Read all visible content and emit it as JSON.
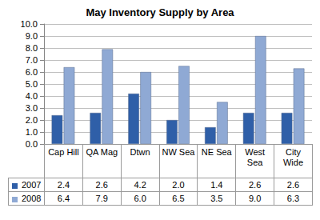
{
  "chart_data": {
    "type": "bar",
    "title": "May Inventory Supply by Area",
    "categories": [
      "Cap Hill",
      "QA Mag",
      "Dtwn",
      "NW Sea",
      "NE Sea",
      "West Sea",
      "City Wide"
    ],
    "series": [
      {
        "name": "2007",
        "color": "#2f5fa8",
        "values": [
          2.4,
          2.6,
          4.2,
          2.0,
          1.4,
          2.6,
          2.6
        ],
        "value_labels": [
          "2.4",
          "2.6",
          "4.2",
          "2.0",
          "1.4",
          "2.6",
          "2.6"
        ]
      },
      {
        "name": "2008",
        "color": "#8fa9d4",
        "values": [
          6.4,
          7.9,
          6.0,
          6.5,
          3.5,
          9.0,
          6.3
        ],
        "value_labels": [
          "6.4",
          "7.9",
          "6.0",
          "6.5",
          "3.5",
          "9.0",
          "6.3"
        ]
      }
    ],
    "ylim": [
      0,
      10
    ],
    "yticks": [
      {
        "value": 0,
        "label": "0.0"
      },
      {
        "value": 1,
        "label": "1.0"
      },
      {
        "value": 2,
        "label": "2.0"
      },
      {
        "value": 3,
        "label": "3.0"
      },
      {
        "value": 4,
        "label": "4.0"
      },
      {
        "value": 5,
        "label": "5.0"
      },
      {
        "value": 6,
        "label": "6.0"
      },
      {
        "value": 7,
        "label": "7.0"
      },
      {
        "value": 8,
        "label": "8.0"
      },
      {
        "value": 9,
        "label": "9.0"
      },
      {
        "value": 10,
        "label": "10.0"
      }
    ],
    "grid": true
  }
}
